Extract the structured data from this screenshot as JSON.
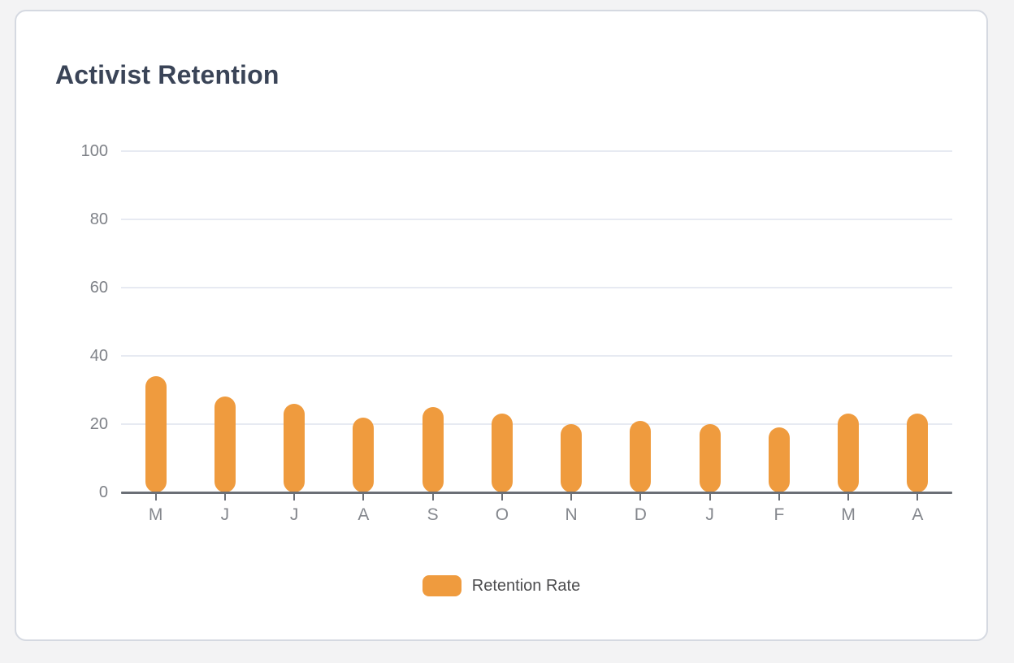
{
  "card": {
    "title": "Activist Retention"
  },
  "chart_data": {
    "type": "bar",
    "title": "Activist Retention",
    "categories": [
      "M",
      "J",
      "J",
      "A",
      "S",
      "O",
      "N",
      "D",
      "J",
      "F",
      "M",
      "A"
    ],
    "series": [
      {
        "name": "Retention Rate",
        "values": [
          34,
          28,
          26,
          22,
          25,
          23,
          20,
          21,
          20,
          19,
          23,
          23
        ]
      }
    ],
    "xlabel": "",
    "ylabel": "",
    "ylim": [
      0,
      100
    ],
    "yticks": [
      0,
      20,
      40,
      60,
      80,
      100
    ],
    "grid": true,
    "legend_position": "bottom"
  },
  "colors": {
    "bar": "#ef9b3e",
    "title": "#3a4457",
    "axis_line": "#6b6f76",
    "gridline": "#e7eaf2",
    "tick_label": "#7f8288",
    "legend_text": "#4c4c4e",
    "card_background": "#ffffff",
    "card_border": "#d5d9e1",
    "page_background": "#f3f3f4"
  }
}
